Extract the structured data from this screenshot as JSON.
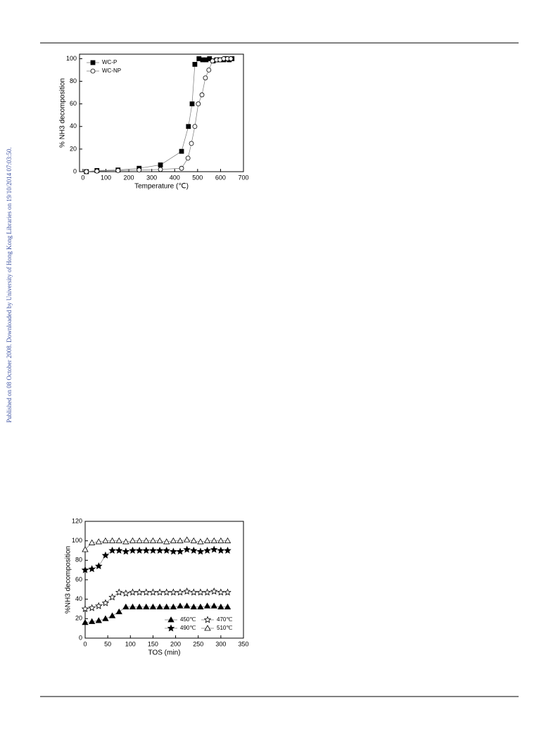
{
  "side_note": "Published on 08 October 2008. Downloaded by University of Hong Kong Libraries on 19/10/2014 07:03:50.",
  "chart_data": [
    {
      "type": "line",
      "x_label": "Temperature (℃)",
      "y_label": "% NH3 decomposition",
      "xlim": [
        -15,
        700
      ],
      "xticks": [
        0,
        100,
        200,
        300,
        400,
        500,
        600,
        700
      ],
      "ylim": [
        0,
        104
      ],
      "yticks": [
        0,
        20,
        40,
        60,
        80,
        100
      ],
      "legend": "upper-left",
      "legend_columns": 1,
      "series": [
        {
          "name": "WC-P",
          "color": "#000000",
          "marker": "square-filled",
          "x": [
            15,
            61,
            153,
            245,
            338,
            430,
            460,
            476,
            488,
            506,
            522,
            537,
            552,
            568,
            583,
            598,
            614,
            626,
            638,
            650
          ],
          "values": [
            0,
            1,
            1.5,
            3,
            6,
            18,
            40,
            60,
            95,
            100,
            99,
            99,
            100,
            98,
            99,
            99,
            99,
            100,
            99,
            100
          ]
        },
        {
          "name": "WC-NP",
          "color": "#000000",
          "marker": "circle-open",
          "x": [
            15,
            61,
            153,
            245,
            338,
            430,
            458,
            473,
            488,
            503,
            519,
            534,
            549,
            565,
            583,
            598,
            614,
            630,
            645
          ],
          "values": [
            0,
            0.5,
            1,
            1.5,
            2,
            3,
            12,
            25,
            40,
            60,
            68,
            83,
            90,
            98,
            99,
            99,
            100,
            100,
            100
          ]
        }
      ]
    },
    {
      "type": "line",
      "x_label": "TOS (min)",
      "y_label": "%NH3 decomposition",
      "xlim": [
        0,
        350
      ],
      "xticks": [
        0,
        50,
        100,
        150,
        200,
        250,
        300,
        350
      ],
      "ylim": [
        0,
        120
      ],
      "yticks": [
        0,
        20,
        40,
        60,
        80,
        100,
        120
      ],
      "legend": "lower-right",
      "legend_columns": 2,
      "x": [
        0,
        15,
        30,
        45,
        60,
        75,
        90,
        105,
        120,
        135,
        150,
        165,
        180,
        195,
        210,
        225,
        240,
        255,
        270,
        285,
        300,
        315
      ],
      "series": [
        {
          "name": "450℃",
          "color": "#000000",
          "marker": "triangle-filled",
          "values": [
            16,
            17,
            18,
            20,
            23,
            27,
            32,
            32,
            32,
            32,
            32,
            32,
            32,
            32,
            33,
            33,
            32,
            32,
            33,
            33,
            32,
            32
          ]
        },
        {
          "name": "470℃",
          "color": "#000000",
          "marker": "star-open",
          "values": [
            30,
            31,
            33,
            36,
            42,
            47,
            46,
            47,
            47,
            47,
            47,
            47,
            47,
            47,
            47,
            48,
            47,
            47,
            47,
            48,
            47,
            47
          ]
        },
        {
          "name": "490℃",
          "color": "#000000",
          "marker": "star-filled",
          "values": [
            70,
            71,
            74,
            85,
            90,
            90,
            89,
            90,
            90,
            90,
            90,
            90,
            90,
            89,
            89,
            91,
            90,
            89,
            90,
            91,
            90,
            90
          ]
        },
        {
          "name": "510℃",
          "color": "#000000",
          "marker": "triangle-open",
          "values": [
            91,
            98,
            99,
            100,
            100,
            100,
            99,
            100,
            100,
            100,
            100,
            100,
            99,
            100,
            100,
            101,
            100,
            99,
            100,
            100,
            100,
            100
          ]
        }
      ]
    }
  ]
}
